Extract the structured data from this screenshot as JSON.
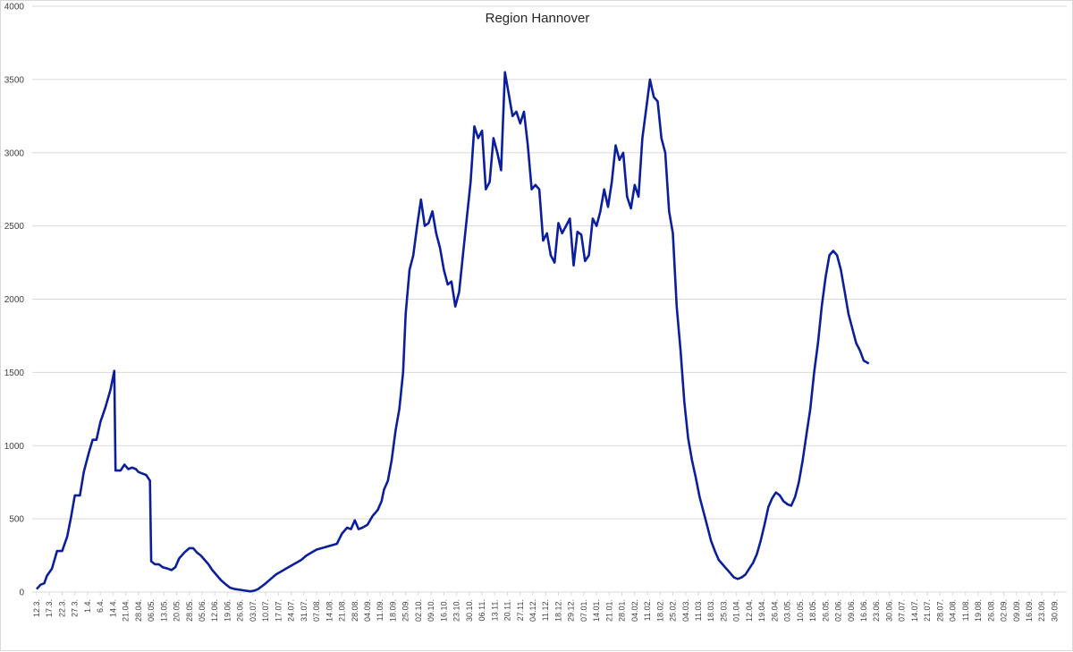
{
  "chart_data": {
    "type": "line",
    "title": "Region Hannover",
    "xlabel": "",
    "ylabel": "",
    "ylim": [
      0,
      4000
    ],
    "y_ticks": [
      0,
      500,
      1000,
      1500,
      2000,
      2500,
      3000,
      3500,
      4000
    ],
    "grid": "horizontal",
    "legend": "none",
    "line_color": "#0b1f9c",
    "x_tick_labels": [
      "12.3.",
      "17.3.",
      "22.3.",
      "27.3.",
      "1.4.",
      "6.4.",
      "14.4.",
      "21.04.",
      "28.04.",
      "06.05.",
      "13.05.",
      "20.05.",
      "28.05.",
      "05.06.",
      "12.06.",
      "19.06.",
      "26.06.",
      "03.07.",
      "10.07.",
      "17.07.",
      "24.07.",
      "31.07.",
      "07.08.",
      "14.08.",
      "21.08.",
      "28.08.",
      "04.09.",
      "11.09.",
      "18.09.",
      "25.09.",
      "02.10.",
      "09.10.",
      "16.10.",
      "23.10.",
      "30.10.",
      "06.11.",
      "13.11.",
      "20.11.",
      "27.11.",
      "04.12.",
      "11.12.",
      "18.12.",
      "29.12.",
      "07.01.",
      "14.01.",
      "21.01.",
      "28.01.",
      "04.02.",
      "11.02.",
      "18.02.",
      "25.02.",
      "04.03.",
      "11.03.",
      "18.03.",
      "25.03.",
      "01.04.",
      "12.04.",
      "19.04.",
      "26.04.",
      "03.05.",
      "10.05.",
      "18.05.",
      "26.05.",
      "02.06.",
      "09.06.",
      "16.06.",
      "23.06.",
      "30.06.",
      "07.07.",
      "14.07.",
      "21.07.",
      "28.07.",
      "04.08.",
      "11.08.",
      "19.08.",
      "26.08.",
      "02.09.",
      "09.09.",
      "16.09.",
      "23.09.",
      "30.09."
    ],
    "series": [
      {
        "values": [
          [
            0,
            20
          ],
          [
            0.3,
            50
          ],
          [
            0.6,
            60
          ],
          [
            0.8,
            110
          ],
          [
            1.2,
            160
          ],
          [
            1.6,
            280
          ],
          [
            2.0,
            280
          ],
          [
            2.4,
            380
          ],
          [
            2.7,
            510
          ],
          [
            3.0,
            660
          ],
          [
            3.4,
            660
          ],
          [
            3.7,
            820
          ],
          [
            4.1,
            950
          ],
          [
            4.4,
            1040
          ],
          [
            4.7,
            1040
          ],
          [
            5.0,
            1160
          ],
          [
            5.4,
            1260
          ],
          [
            5.8,
            1380
          ],
          [
            6.1,
            1510
          ],
          [
            6.2,
            830
          ],
          [
            6.6,
            830
          ],
          [
            6.9,
            870
          ],
          [
            7.2,
            840
          ],
          [
            7.5,
            850
          ],
          [
            7.8,
            840
          ],
          [
            8.0,
            820
          ],
          [
            8.3,
            810
          ],
          [
            8.6,
            800
          ],
          [
            8.9,
            760
          ],
          [
            9.0,
            210
          ],
          [
            9.3,
            190
          ],
          [
            9.6,
            190
          ],
          [
            9.9,
            170
          ],
          [
            10.3,
            160
          ],
          [
            10.6,
            150
          ],
          [
            10.9,
            170
          ],
          [
            11.2,
            230
          ],
          [
            11.6,
            270
          ],
          [
            12.0,
            300
          ],
          [
            12.3,
            300
          ],
          [
            12.6,
            270
          ],
          [
            12.9,
            250
          ],
          [
            13.2,
            220
          ],
          [
            13.5,
            190
          ],
          [
            13.8,
            150
          ],
          [
            14.1,
            120
          ],
          [
            14.5,
            80
          ],
          [
            14.9,
            50
          ],
          [
            15.2,
            30
          ],
          [
            15.6,
            20
          ],
          [
            16.0,
            15
          ],
          [
            16.4,
            10
          ],
          [
            16.8,
            5
          ],
          [
            17.1,
            10
          ],
          [
            17.4,
            20
          ],
          [
            17.7,
            40
          ],
          [
            18.0,
            60
          ],
          [
            18.4,
            90
          ],
          [
            18.8,
            120
          ],
          [
            19.2,
            140
          ],
          [
            19.6,
            160
          ],
          [
            20.0,
            180
          ],
          [
            20.4,
            200
          ],
          [
            20.8,
            220
          ],
          [
            21.2,
            250
          ],
          [
            21.6,
            270
          ],
          [
            22.0,
            290
          ],
          [
            22.4,
            300
          ],
          [
            22.8,
            310
          ],
          [
            23.2,
            320
          ],
          [
            23.6,
            330
          ],
          [
            24.0,
            400
          ],
          [
            24.4,
            440
          ],
          [
            24.7,
            430
          ],
          [
            25.0,
            490
          ],
          [
            25.3,
            430
          ],
          [
            25.6,
            440
          ],
          [
            26.0,
            460
          ],
          [
            26.4,
            520
          ],
          [
            26.8,
            560
          ],
          [
            27.1,
            620
          ],
          [
            27.3,
            700
          ],
          [
            27.6,
            760
          ],
          [
            27.9,
            900
          ],
          [
            28.2,
            1100
          ],
          [
            28.5,
            1250
          ],
          [
            28.8,
            1500
          ],
          [
            29.0,
            1900
          ],
          [
            29.3,
            2200
          ],
          [
            29.6,
            2300
          ],
          [
            29.9,
            2500
          ],
          [
            30.2,
            2680
          ],
          [
            30.5,
            2500
          ],
          [
            30.8,
            2520
          ],
          [
            31.1,
            2600
          ],
          [
            31.4,
            2450
          ],
          [
            31.7,
            2350
          ],
          [
            32.0,
            2200
          ],
          [
            32.3,
            2100
          ],
          [
            32.6,
            2120
          ],
          [
            32.9,
            1950
          ],
          [
            33.2,
            2050
          ],
          [
            33.5,
            2300
          ],
          [
            33.8,
            2550
          ],
          [
            34.1,
            2800
          ],
          [
            34.4,
            3180
          ],
          [
            34.7,
            3100
          ],
          [
            35.0,
            3150
          ],
          [
            35.3,
            2750
          ],
          [
            35.6,
            2800
          ],
          [
            35.9,
            3100
          ],
          [
            36.2,
            3000
          ],
          [
            36.5,
            2880
          ],
          [
            36.8,
            3550
          ],
          [
            37.1,
            3400
          ],
          [
            37.4,
            3250
          ],
          [
            37.7,
            3280
          ],
          [
            38.0,
            3200
          ],
          [
            38.3,
            3280
          ],
          [
            38.6,
            3050
          ],
          [
            38.9,
            2750
          ],
          [
            39.2,
            2780
          ],
          [
            39.5,
            2750
          ],
          [
            39.8,
            2400
          ],
          [
            40.1,
            2450
          ],
          [
            40.4,
            2300
          ],
          [
            40.7,
            2250
          ],
          [
            41.0,
            2520
          ],
          [
            41.3,
            2450
          ],
          [
            41.6,
            2500
          ],
          [
            41.9,
            2550
          ],
          [
            42.2,
            2230
          ],
          [
            42.5,
            2460
          ],
          [
            42.8,
            2440
          ],
          [
            43.1,
            2260
          ],
          [
            43.4,
            2300
          ],
          [
            43.7,
            2550
          ],
          [
            44.0,
            2500
          ],
          [
            44.3,
            2600
          ],
          [
            44.6,
            2750
          ],
          [
            44.9,
            2630
          ],
          [
            45.2,
            2800
          ],
          [
            45.5,
            3050
          ],
          [
            45.8,
            2950
          ],
          [
            46.1,
            3000
          ],
          [
            46.4,
            2700
          ],
          [
            46.7,
            2620
          ],
          [
            47.0,
            2780
          ],
          [
            47.3,
            2700
          ],
          [
            47.6,
            3100
          ],
          [
            47.9,
            3300
          ],
          [
            48.2,
            3500
          ],
          [
            48.5,
            3380
          ],
          [
            48.8,
            3350
          ],
          [
            49.1,
            3100
          ],
          [
            49.4,
            3000
          ],
          [
            49.7,
            2600
          ],
          [
            50.0,
            2450
          ],
          [
            50.3,
            1950
          ],
          [
            50.6,
            1650
          ],
          [
            50.9,
            1300
          ],
          [
            51.2,
            1050
          ],
          [
            51.5,
            900
          ],
          [
            51.8,
            780
          ],
          [
            52.1,
            650
          ],
          [
            52.4,
            550
          ],
          [
            52.7,
            450
          ],
          [
            53.0,
            350
          ],
          [
            53.3,
            280
          ],
          [
            53.6,
            220
          ],
          [
            53.9,
            190
          ],
          [
            54.2,
            160
          ],
          [
            54.5,
            130
          ],
          [
            54.8,
            100
          ],
          [
            55.1,
            90
          ],
          [
            55.4,
            100
          ],
          [
            55.7,
            120
          ],
          [
            56.0,
            160
          ],
          [
            56.3,
            200
          ],
          [
            56.6,
            260
          ],
          [
            56.9,
            350
          ],
          [
            57.2,
            460
          ],
          [
            57.5,
            580
          ],
          [
            57.8,
            640
          ],
          [
            58.1,
            680
          ],
          [
            58.4,
            660
          ],
          [
            58.7,
            620
          ],
          [
            59.0,
            600
          ],
          [
            59.3,
            590
          ],
          [
            59.6,
            650
          ],
          [
            59.9,
            750
          ],
          [
            60.2,
            900
          ],
          [
            60.5,
            1080
          ],
          [
            60.8,
            1250
          ],
          [
            61.1,
            1500
          ],
          [
            61.4,
            1700
          ],
          [
            61.7,
            1950
          ],
          [
            62.0,
            2150
          ],
          [
            62.3,
            2300
          ],
          [
            62.6,
            2330
          ],
          [
            62.9,
            2300
          ],
          [
            63.2,
            2200
          ],
          [
            63.5,
            2050
          ],
          [
            63.8,
            1900
          ],
          [
            64.1,
            1800
          ],
          [
            64.4,
            1700
          ],
          [
            64.7,
            1650
          ],
          [
            65.0,
            1580
          ],
          [
            65.4,
            1560
          ]
        ]
      }
    ]
  }
}
